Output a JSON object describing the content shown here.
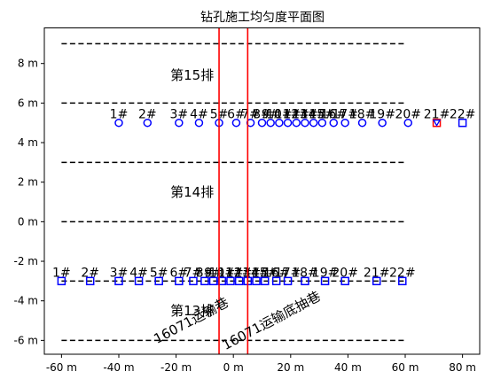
{
  "chart_data": {
    "type": "scatter",
    "title": "钻孔施工均匀度平面图",
    "xlim": [
      -66,
      86
    ],
    "ylim": [
      -6.7,
      9.8
    ],
    "x_ticks": [
      {
        "value": -60,
        "label": "-60 m"
      },
      {
        "value": -40,
        "label": "-40 m"
      },
      {
        "value": -20,
        "label": "-20 m"
      },
      {
        "value": 0,
        "label": "0 m"
      },
      {
        "value": 20,
        "label": "20 m"
      },
      {
        "value": 40,
        "label": "40 m"
      },
      {
        "value": 60,
        "label": "60 m"
      },
      {
        "value": 80,
        "label": "80 m"
      }
    ],
    "y_ticks": [
      {
        "value": -6,
        "label": "-6 m"
      },
      {
        "value": -4,
        "label": "-4 m"
      },
      {
        "value": -2,
        "label": "-2 m"
      },
      {
        "value": 0,
        "label": "0 m"
      },
      {
        "value": 2,
        "label": "2 m"
      },
      {
        "value": 4,
        "label": "4 m"
      },
      {
        "value": 6,
        "label": "6 m"
      },
      {
        "value": 8,
        "label": "8 m"
      }
    ],
    "boundary_lines": [
      {
        "y": 9,
        "x": [
          -60,
          60
        ]
      },
      {
        "y": 6,
        "x": [
          -60,
          60
        ]
      },
      {
        "y": 3,
        "x": [
          -60,
          60
        ]
      },
      {
        "y": 0,
        "x": [
          -60,
          60
        ]
      },
      {
        "y": -3,
        "x": [
          -60,
          60
        ]
      },
      {
        "y": -6,
        "x": [
          -60,
          60
        ]
      }
    ],
    "tunnel_lines": [
      {
        "x": -5,
        "label": "16071运输巷",
        "label_x": -14,
        "label_y": -5.2
      },
      {
        "x": 5,
        "label": "16071运输底抽巷",
        "label_x": 14,
        "label_y": -5.2
      }
    ],
    "rows": [
      {
        "label": "第15排",
        "label_x": -22,
        "label_y": 7.4
      },
      {
        "label": "第14排",
        "label_x": -22,
        "label_y": 1.5
      },
      {
        "label": "第13排",
        "label_x": -22,
        "label_y": -4.5
      }
    ],
    "series": [
      {
        "marker": "circle",
        "y": 5,
        "points": [
          {
            "label": "1#",
            "x": -40
          },
          {
            "label": "2#",
            "x": -30
          },
          {
            "label": "3#",
            "x": -19
          },
          {
            "label": "4#",
            "x": -12
          },
          {
            "label": "5#",
            "x": -5
          },
          {
            "label": "6#",
            "x": 1
          },
          {
            "label": "7#",
            "x": 6
          },
          {
            "label": "8#",
            "x": 10
          },
          {
            "label": "9#",
            "x": 13
          },
          {
            "label": "10#",
            "x": 16
          },
          {
            "label": "11#",
            "x": 19
          },
          {
            "label": "12#",
            "x": 22
          },
          {
            "label": "13#",
            "x": 25
          },
          {
            "label": "14#",
            "x": 28
          },
          {
            "label": "15#",
            "x": 31
          },
          {
            "label": "16#",
            "x": 35
          },
          {
            "label": "17#",
            "x": 39
          },
          {
            "label": "18#",
            "x": 45
          },
          {
            "label": "19#",
            "x": 52
          },
          {
            "label": "20#",
            "x": 61
          },
          {
            "label": "21#",
            "x": 71,
            "marker": "down-triangle"
          },
          {
            "label": "22#",
            "x": 80,
            "marker": "square"
          }
        ]
      },
      {
        "marker": "square",
        "y": -3,
        "points": [
          {
            "label": "1#",
            "x": -60
          },
          {
            "label": "2#",
            "x": -50
          },
          {
            "label": "3#",
            "x": -40
          },
          {
            "label": "4#",
            "x": -33
          },
          {
            "label": "5#",
            "x": -26
          },
          {
            "label": "6#",
            "x": -19
          },
          {
            "label": "7#",
            "x": -14
          },
          {
            "label": "8#",
            "x": -10
          },
          {
            "label": "9#",
            "x": -7
          },
          {
            "label": "10#",
            "x": -4
          },
          {
            "label": "11#",
            "x": -1
          },
          {
            "label": "12#",
            "x": 2
          },
          {
            "label": "13#",
            "x": 5
          },
          {
            "label": "14#",
            "x": 8
          },
          {
            "label": "15#",
            "x": 11
          },
          {
            "label": "16#",
            "x": 15
          },
          {
            "label": "17#",
            "x": 19
          },
          {
            "label": "18#",
            "x": 25
          },
          {
            "label": "19#",
            "x": 32
          },
          {
            "label": "20#",
            "x": 39
          },
          {
            "label": "21#",
            "x": 50
          },
          {
            "label": "22#",
            "x": 59
          }
        ]
      }
    ],
    "colors": {
      "marker": "#0000ff",
      "special_marker": "#ff0000",
      "tunnel": "#ff0000",
      "dashed": "#000000"
    }
  }
}
